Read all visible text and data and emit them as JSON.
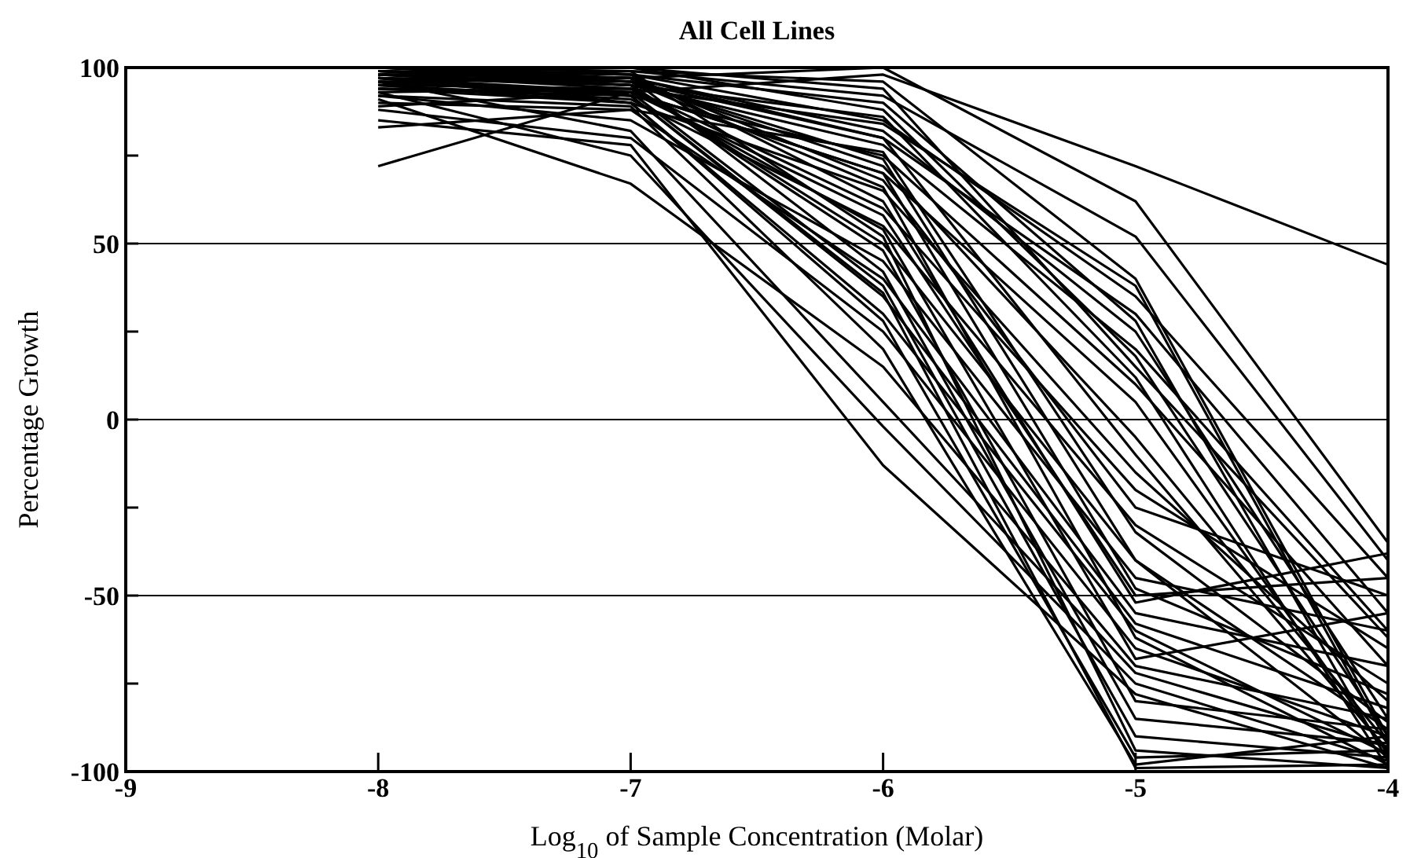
{
  "chart_data": {
    "type": "line",
    "title": "All Cell Lines",
    "xlabel": "Log$_{10}$ of Sample Concentration (Molar)",
    "ylabel": "Percentage Growth",
    "xlim": [
      -9,
      -4
    ],
    "xticks": [
      -9,
      -8,
      -7,
      -6,
      -5,
      -4
    ],
    "ylim": [
      -100,
      100
    ],
    "yticks": [
      -100,
      {
        "value": -75,
        "label": null
      },
      -50,
      {
        "value": -25,
        "label": null
      },
      0,
      {
        "value": 25,
        "label": null
      },
      50,
      {
        "value": 75,
        "label": null
      },
      100
    ],
    "grid": "y",
    "marker": "none",
    "line_style": "solid",
    "x": [
      -8,
      -7,
      -6,
      -5,
      -4
    ],
    "series": [
      {
        "color": "#000000",
        "values": [
          72,
          93,
          98,
          72,
          44
        ]
      },
      {
        "color": "#000000",
        "values": [
          98,
          97,
          100,
          62,
          -35
        ]
      },
      {
        "color": "#000000",
        "values": [
          95,
          99,
          92,
          52,
          -40
        ]
      },
      {
        "color": "#000000",
        "values": [
          100,
          98,
          85,
          35,
          -45
        ]
      },
      {
        "color": "#000000",
        "values": [
          97,
          96,
          80,
          30,
          -55
        ]
      },
      {
        "color": "#000000",
        "values": [
          99,
          95,
          78,
          20,
          -60
        ]
      },
      {
        "color": "#000000",
        "values": [
          96,
          92,
          75,
          10,
          -70
        ]
      },
      {
        "color": "#000000",
        "values": [
          98,
          97,
          82,
          25,
          -85
        ]
      },
      {
        "color": "#000000",
        "values": [
          100,
          100,
          88,
          18,
          -90
        ]
      },
      {
        "color": "#000000",
        "values": [
          94,
          93,
          70,
          5,
          -95
        ]
      },
      {
        "color": "#000000",
        "values": [
          99,
          96,
          72,
          -5,
          -92
        ]
      },
      {
        "color": "#000000",
        "values": [
          97,
          90,
          65,
          -15,
          -80
        ]
      },
      {
        "color": "#000000",
        "values": [
          93,
          94,
          60,
          -20,
          -65
        ]
      },
      {
        "color": "#000000",
        "values": [
          100,
          97,
          68,
          -25,
          -50
        ]
      },
      {
        "color": "#000000",
        "values": [
          95,
          91,
          55,
          -30,
          -75
        ]
      },
      {
        "color": "#000000",
        "values": [
          98,
          95,
          50,
          -40,
          -88
        ]
      },
      {
        "color": "#000000",
        "values": [
          92,
          85,
          45,
          -45,
          -60
        ]
      },
      {
        "color": "#000000",
        "values": [
          96,
          93,
          58,
          -50,
          -45
        ]
      },
      {
        "color": "#000000",
        "values": [
          99,
          98,
          62,
          -52,
          -38
        ]
      },
      {
        "color": "#000000",
        "values": [
          90,
          88,
          40,
          -55,
          -70
        ]
      },
      {
        "color": "#000000",
        "values": [
          97,
          92,
          35,
          -58,
          -82
        ]
      },
      {
        "color": "#000000",
        "values": [
          94,
          90,
          30,
          -60,
          -95
        ]
      },
      {
        "color": "#000000",
        "values": [
          100,
          96,
          66,
          -62,
          -98
        ]
      },
      {
        "color": "#000000",
        "values": [
          88,
          80,
          25,
          -65,
          -90
        ]
      },
      {
        "color": "#000000",
        "values": [
          95,
          94,
          54,
          -68,
          -55
        ]
      },
      {
        "color": "#000000",
        "values": [
          91,
          67,
          15,
          -70,
          -85
        ]
      },
      {
        "color": "#000000",
        "values": [
          96,
          82,
          5,
          -72,
          -93
        ]
      },
      {
        "color": "#000000",
        "values": [
          93,
          75,
          -2,
          -75,
          -97
        ]
      },
      {
        "color": "#000000",
        "values": [
          85,
          78,
          -13,
          -78,
          -99
        ]
      },
      {
        "color": "#000000",
        "values": [
          98,
          95,
          48,
          -80,
          -88
        ]
      },
      {
        "color": "#000000",
        "values": [
          99,
          97,
          42,
          -85,
          -92
        ]
      },
      {
        "color": "#000000",
        "values": [
          97,
          93,
          38,
          -90,
          -96
        ]
      },
      {
        "color": "#000000",
        "values": [
          100,
          99,
          52,
          -94,
          -99
        ]
      },
      {
        "color": "#000000",
        "values": [
          95,
          90,
          28,
          -96,
          -94
        ]
      },
      {
        "color": "#000000",
        "values": [
          92,
          89,
          20,
          -98,
          -90
        ]
      },
      {
        "color": "#000000",
        "values": [
          94,
          92,
          36,
          -99,
          -98
        ]
      },
      {
        "color": "#000000",
        "values": [
          99,
          96,
          74,
          -40,
          -96
        ]
      },
      {
        "color": "#000000",
        "values": [
          98,
          94,
          84,
          38,
          -92
        ]
      },
      {
        "color": "#000000",
        "values": [
          100,
          98,
          90,
          28,
          -97
        ]
      },
      {
        "color": "#000000",
        "values": [
          97,
          95,
          86,
          12,
          -99
        ]
      },
      {
        "color": "#000000",
        "values": [
          96,
          97,
          80,
          -10,
          -94
        ]
      },
      {
        "color": "#000000",
        "values": [
          83,
          88,
          76,
          -32,
          -86
        ]
      },
      {
        "color": "#000000",
        "values": [
          89,
          93,
          70,
          -48,
          -78
        ]
      },
      {
        "color": "#000000",
        "values": [
          100,
          100,
          94,
          15,
          -62
        ]
      },
      {
        "color": "#000000",
        "values": [
          98,
          99,
          96,
          40,
          -90
        ]
      }
    ]
  }
}
